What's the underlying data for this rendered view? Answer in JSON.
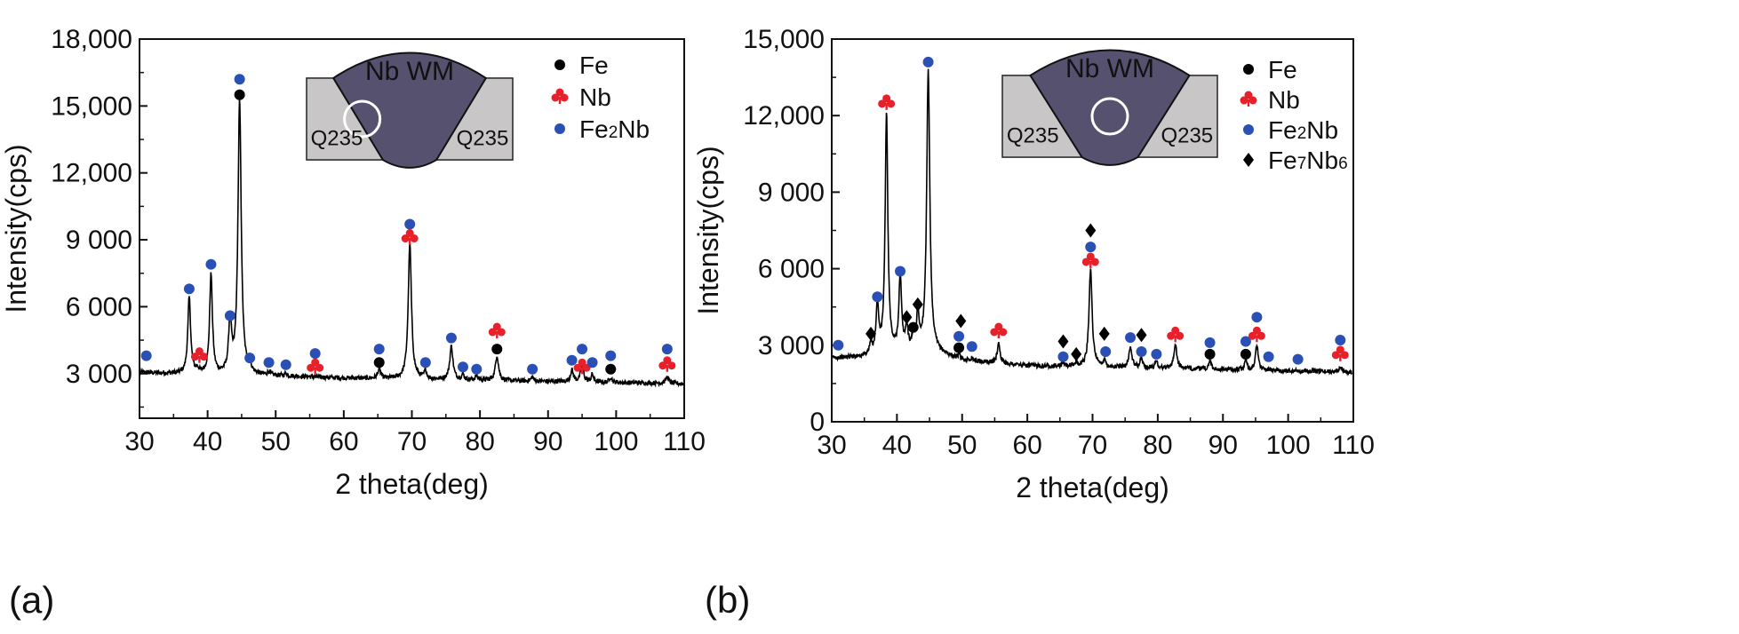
{
  "chart_data": [
    {
      "type": "line",
      "panel_label": "(a)",
      "xlabel": "2 theta(deg)",
      "ylabel": "Intensity(cps)",
      "xlim": [
        30,
        110
      ],
      "ylim": [
        1000,
        18000
      ],
      "x_ticks": [
        30,
        40,
        50,
        60,
        70,
        80,
        90,
        100,
        110
      ],
      "x_tick_labels": [
        "30",
        "40",
        "50",
        "60",
        "70",
        "80",
        "90",
        "100",
        "110"
      ],
      "y_ticks": [
        3000,
        6000,
        9000,
        12000,
        15000,
        18000
      ],
      "y_tick_labels": [
        "3 000",
        "6 000",
        "9 000",
        "12,000",
        "15,000",
        "18,000"
      ],
      "baseline": [
        [
          30,
          3050
        ],
        [
          40,
          2950
        ],
        [
          50,
          2900
        ],
        [
          60,
          2800
        ],
        [
          70,
          2750
        ],
        [
          80,
          2700
        ],
        [
          90,
          2650
        ],
        [
          100,
          2600
        ],
        [
          110,
          2550
        ]
      ],
      "peaks": [
        {
          "x": 37.3,
          "h": 6400,
          "w": 0.35
        },
        {
          "x": 38.5,
          "h": 3150,
          "w": 0.3
        },
        {
          "x": 40.5,
          "h": 7400,
          "w": 0.35
        },
        {
          "x": 43.3,
          "h": 5300,
          "w": 0.35
        },
        {
          "x": 44.7,
          "h": 15200,
          "w": 0.4
        },
        {
          "x": 46.2,
          "h": 3300,
          "w": 0.3
        },
        {
          "x": 49.0,
          "h": 3050,
          "w": 0.3
        },
        {
          "x": 51.5,
          "h": 3000,
          "w": 0.3
        },
        {
          "x": 65.2,
          "h": 3200,
          "w": 0.35
        },
        {
          "x": 69.7,
          "h": 8800,
          "w": 0.4
        },
        {
          "x": 72.0,
          "h": 3100,
          "w": 0.3
        },
        {
          "x": 75.8,
          "h": 4200,
          "w": 0.4
        },
        {
          "x": 77.5,
          "h": 2950,
          "w": 0.3
        },
        {
          "x": 79.5,
          "h": 2900,
          "w": 0.3
        },
        {
          "x": 82.5,
          "h": 3800,
          "w": 0.4
        },
        {
          "x": 87.7,
          "h": 2850,
          "w": 0.3
        },
        {
          "x": 93.5,
          "h": 3150,
          "w": 0.35
        },
        {
          "x": 95.0,
          "h": 3400,
          "w": 0.35
        },
        {
          "x": 96.5,
          "h": 2950,
          "w": 0.3
        },
        {
          "x": 99.2,
          "h": 2850,
          "w": 0.3
        },
        {
          "x": 107.5,
          "h": 2850,
          "w": 0.4
        }
      ],
      "markers": [
        {
          "x": 31.0,
          "y": 3800,
          "phase": "Fe2Nb"
        },
        {
          "x": 37.3,
          "y": 6800,
          "phase": "Fe2Nb"
        },
        {
          "x": 38.8,
          "y": 3800,
          "phase": "Nb"
        },
        {
          "x": 40.5,
          "y": 7900,
          "phase": "Fe2Nb"
        },
        {
          "x": 43.3,
          "y": 5600,
          "phase": "Fe2Nb"
        },
        {
          "x": 44.7,
          "y": 15500,
          "phase": "Fe"
        },
        {
          "x": 44.7,
          "y": 16200,
          "phase": "Fe2Nb"
        },
        {
          "x": 46.2,
          "y": 3700,
          "phase": "Fe2Nb"
        },
        {
          "x": 49.0,
          "y": 3500,
          "phase": "Fe2Nb"
        },
        {
          "x": 51.5,
          "y": 3400,
          "phase": "Fe2Nb"
        },
        {
          "x": 55.8,
          "y": 3900,
          "phase": "Fe2Nb"
        },
        {
          "x": 55.8,
          "y": 3300,
          "phase": "Nb"
        },
        {
          "x": 65.2,
          "y": 3500,
          "phase": "Fe"
        },
        {
          "x": 65.2,
          "y": 4100,
          "phase": "Fe2Nb"
        },
        {
          "x": 69.7,
          "y": 9700,
          "phase": "Fe2Nb"
        },
        {
          "x": 69.7,
          "y": 9100,
          "phase": "Nb"
        },
        {
          "x": 72.0,
          "y": 3500,
          "phase": "Fe2Nb"
        },
        {
          "x": 75.8,
          "y": 4600,
          "phase": "Fe2Nb"
        },
        {
          "x": 77.5,
          "y": 3300,
          "phase": "Fe2Nb"
        },
        {
          "x": 79.5,
          "y": 3200,
          "phase": "Fe2Nb"
        },
        {
          "x": 82.5,
          "y": 4100,
          "phase": "Fe"
        },
        {
          "x": 82.5,
          "y": 4900,
          "phase": "Nb"
        },
        {
          "x": 87.7,
          "y": 3200,
          "phase": "Fe2Nb"
        },
        {
          "x": 93.5,
          "y": 3600,
          "phase": "Fe2Nb"
        },
        {
          "x": 95.0,
          "y": 4100,
          "phase": "Fe2Nb"
        },
        {
          "x": 95.0,
          "y": 3300,
          "phase": "Nb"
        },
        {
          "x": 96.5,
          "y": 3500,
          "phase": "Fe2Nb"
        },
        {
          "x": 99.2,
          "y": 3200,
          "phase": "Fe"
        },
        {
          "x": 99.2,
          "y": 3800,
          "phase": "Fe2Nb"
        },
        {
          "x": 107.5,
          "y": 4100,
          "phase": "Fe2Nb"
        },
        {
          "x": 107.5,
          "y": 3400,
          "phase": "Nb"
        }
      ],
      "legend": [
        {
          "phase": "Fe",
          "label": "Fe"
        },
        {
          "phase": "Nb",
          "label": "Nb"
        },
        {
          "phase": "Fe2Nb",
          "label_main": "Fe",
          "label_sub": "2",
          "label_end": "Nb"
        }
      ],
      "inset": {
        "title": "Nb WM",
        "left_label": "Q235",
        "right_label": "Q235",
        "circle_position": "fusion line"
      }
    },
    {
      "type": "line",
      "panel_label": "(b)",
      "xlabel": "2 theta(deg)",
      "ylabel": "Intensity(cps)",
      "xlim": [
        30,
        110
      ],
      "ylim": [
        0,
        15000
      ],
      "x_ticks": [
        30,
        40,
        50,
        60,
        70,
        80,
        90,
        100,
        110
      ],
      "x_tick_labels": [
        "30",
        "40",
        "50",
        "60",
        "70",
        "80",
        "90",
        "100",
        "110"
      ],
      "y_ticks": [
        0,
        3000,
        6000,
        9000,
        12000,
        15000
      ],
      "y_tick_labels": [
        "0",
        "3 000",
        "6 000",
        "9 000",
        "12,000",
        "15,000"
      ],
      "baseline": [
        [
          30,
          2500
        ],
        [
          35,
          2550
        ],
        [
          40,
          2700
        ],
        [
          45,
          2800
        ],
        [
          50,
          2400
        ],
        [
          60,
          2200
        ],
        [
          70,
          2150
        ],
        [
          80,
          2100
        ],
        [
          90,
          2050
        ],
        [
          100,
          2000
        ],
        [
          110,
          1950
        ]
      ],
      "peaks": [
        {
          "x": 36.0,
          "h": 3000,
          "w": 0.3
        },
        {
          "x": 37.0,
          "h": 4500,
          "w": 0.35
        },
        {
          "x": 38.4,
          "h": 12000,
          "w": 0.35
        },
        {
          "x": 40.5,
          "h": 5600,
          "w": 0.35
        },
        {
          "x": 41.5,
          "h": 3700,
          "w": 0.3
        },
        {
          "x": 42.5,
          "h": 3300,
          "w": 0.3
        },
        {
          "x": 43.2,
          "h": 4200,
          "w": 0.3
        },
        {
          "x": 44.8,
          "h": 13800,
          "w": 0.4
        },
        {
          "x": 49.5,
          "h": 2600,
          "w": 0.3
        },
        {
          "x": 51.5,
          "h": 2500,
          "w": 0.3
        },
        {
          "x": 55.6,
          "h": 3100,
          "w": 0.35
        },
        {
          "x": 65.5,
          "h": 2300,
          "w": 0.3
        },
        {
          "x": 67.5,
          "h": 2300,
          "w": 0.3
        },
        {
          "x": 69.7,
          "h": 6000,
          "w": 0.4
        },
        {
          "x": 71.8,
          "h": 2400,
          "w": 0.3
        },
        {
          "x": 75.8,
          "h": 2900,
          "w": 0.4
        },
        {
          "x": 77.5,
          "h": 2500,
          "w": 0.3
        },
        {
          "x": 79.8,
          "h": 2400,
          "w": 0.3
        },
        {
          "x": 82.7,
          "h": 3000,
          "w": 0.4
        },
        {
          "x": 88.0,
          "h": 2400,
          "w": 0.3
        },
        {
          "x": 93.5,
          "h": 2400,
          "w": 0.3
        },
        {
          "x": 95.2,
          "h": 3000,
          "w": 0.35
        },
        {
          "x": 108.0,
          "h": 2200,
          "w": 0.35
        }
      ],
      "markers": [
        {
          "x": 31.0,
          "y": 3000,
          "phase": "Fe2Nb"
        },
        {
          "x": 36.0,
          "y": 3450,
          "phase": "Fe7Nb6"
        },
        {
          "x": 37.0,
          "y": 4900,
          "phase": "Fe2Nb"
        },
        {
          "x": 38.4,
          "y": 12500,
          "phase": "Nb"
        },
        {
          "x": 40.5,
          "y": 5900,
          "phase": "Fe2Nb"
        },
        {
          "x": 41.5,
          "y": 4100,
          "phase": "Fe7Nb6"
        },
        {
          "x": 42.5,
          "y": 3700,
          "phase": "Fe"
        },
        {
          "x": 43.2,
          "y": 4600,
          "phase": "Fe7Nb6"
        },
        {
          "x": 44.8,
          "y": 14100,
          "phase": "Fe2Nb"
        },
        {
          "x": 49.5,
          "y": 2900,
          "phase": "Fe"
        },
        {
          "x": 49.5,
          "y": 3350,
          "phase": "Fe2Nb"
        },
        {
          "x": 49.8,
          "y": 3950,
          "phase": "Fe7Nb6"
        },
        {
          "x": 51.5,
          "y": 2950,
          "phase": "Fe2Nb"
        },
        {
          "x": 55.6,
          "y": 3550,
          "phase": "Nb"
        },
        {
          "x": 65.5,
          "y": 2550,
          "phase": "Fe2Nb"
        },
        {
          "x": 65.5,
          "y": 3150,
          "phase": "Fe7Nb6"
        },
        {
          "x": 67.5,
          "y": 2650,
          "phase": "Fe7Nb6"
        },
        {
          "x": 69.7,
          "y": 7500,
          "phase": "Fe7Nb6"
        },
        {
          "x": 69.7,
          "y": 6850,
          "phase": "Fe2Nb"
        },
        {
          "x": 69.7,
          "y": 6300,
          "phase": "Nb"
        },
        {
          "x": 71.8,
          "y": 3450,
          "phase": "Fe7Nb6"
        },
        {
          "x": 72.0,
          "y": 2750,
          "phase": "Fe2Nb"
        },
        {
          "x": 75.8,
          "y": 3300,
          "phase": "Fe2Nb"
        },
        {
          "x": 77.5,
          "y": 3400,
          "phase": "Fe7Nb6"
        },
        {
          "x": 77.5,
          "y": 2750,
          "phase": "Fe2Nb"
        },
        {
          "x": 79.8,
          "y": 2650,
          "phase": "Fe2Nb"
        },
        {
          "x": 82.7,
          "y": 3400,
          "phase": "Nb"
        },
        {
          "x": 88.0,
          "y": 3100,
          "phase": "Fe2Nb"
        },
        {
          "x": 88.0,
          "y": 2650,
          "phase": "Fe"
        },
        {
          "x": 93.5,
          "y": 3150,
          "phase": "Fe2Nb"
        },
        {
          "x": 93.5,
          "y": 2650,
          "phase": "Fe"
        },
        {
          "x": 95.2,
          "y": 4100,
          "phase": "Fe2Nb"
        },
        {
          "x": 95.2,
          "y": 3400,
          "phase": "Nb"
        },
        {
          "x": 97.0,
          "y": 2550,
          "phase": "Fe2Nb"
        },
        {
          "x": 101.5,
          "y": 2450,
          "phase": "Fe2Nb"
        },
        {
          "x": 108.0,
          "y": 3200,
          "phase": "Fe2Nb"
        },
        {
          "x": 108.0,
          "y": 2650,
          "phase": "Nb"
        }
      ],
      "legend": [
        {
          "phase": "Fe",
          "label": "Fe"
        },
        {
          "phase": "Nb",
          "label": "Nb"
        },
        {
          "phase": "Fe2Nb",
          "label_main": "Fe",
          "label_sub": "2",
          "label_end": "Nb"
        },
        {
          "phase": "Fe7Nb6",
          "label_main": "Fe",
          "label_sub": "7",
          "label_end": "Nb",
          "label_sub2": "6"
        }
      ],
      "inset": {
        "title": "Nb WM",
        "left_label": "Q235",
        "right_label": "Q235",
        "circle_position": "weld center"
      }
    }
  ],
  "colors": {
    "Fe": "#000000",
    "Nb": "#e8202a",
    "Fe2Nb": "#2a4fb5",
    "Fe7Nb6": "#000000",
    "weld_metal": "#55516f",
    "base_metal": "#c8c6c6",
    "trace": "#000000"
  }
}
